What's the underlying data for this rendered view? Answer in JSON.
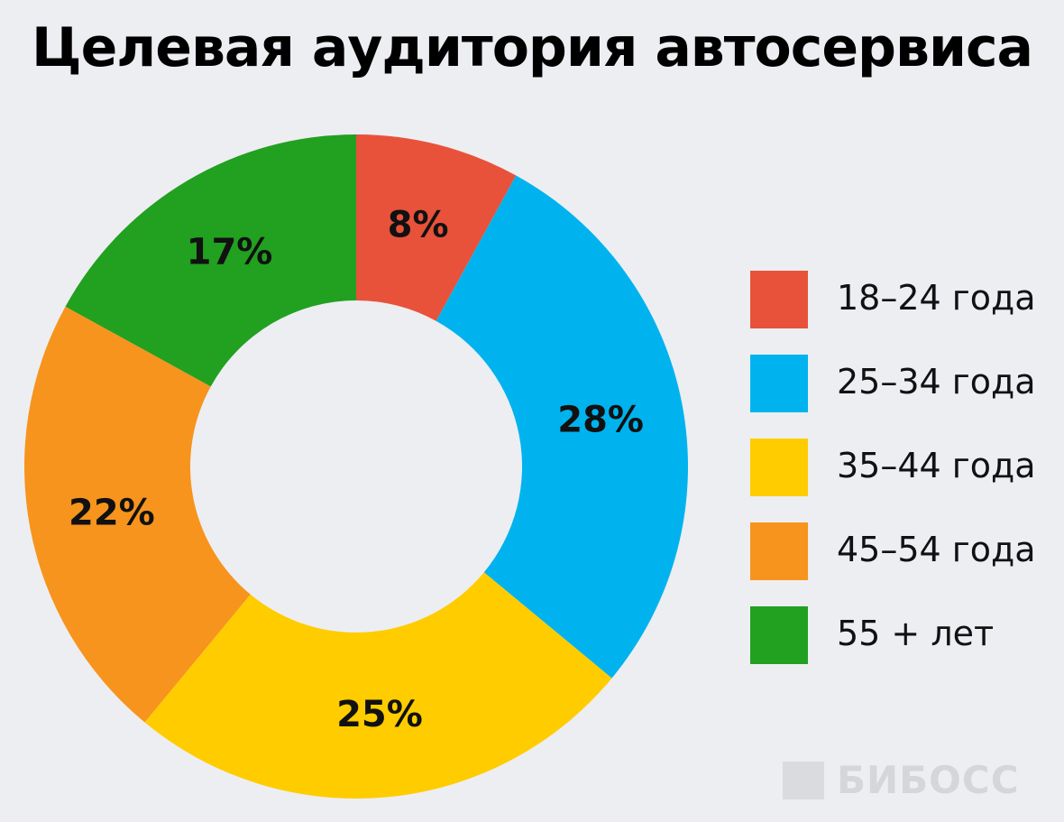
{
  "header": {
    "title": "Целевая аудитория автосервиса"
  },
  "chart_data": {
    "type": "pie",
    "variant": "donut",
    "title": "Целевая аудитория автосервиса",
    "start_angle": "12 o'clock",
    "direction": "clockwise",
    "legend_position": "right",
    "categories": [
      "18–24 года",
      "25–34 года",
      "35–44 года",
      "45–54 года",
      "55 + лет"
    ],
    "values": [
      8,
      28,
      25,
      22,
      17
    ],
    "data_labels": [
      "8%",
      "28%",
      "25%",
      "22%",
      "17%"
    ],
    "colors": [
      "#e8523a",
      "#00b3ee",
      "#ffcc00",
      "#f7941d",
      "#22a020"
    ]
  },
  "watermark": {
    "text": "БИБОСС"
  }
}
